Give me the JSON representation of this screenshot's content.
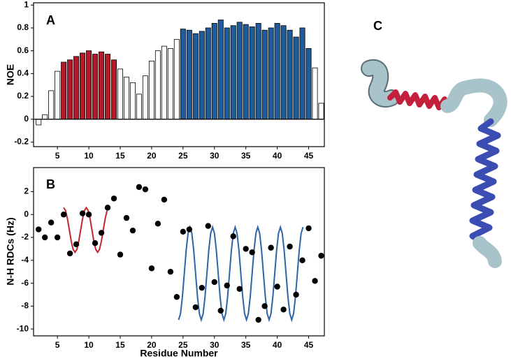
{
  "chart_data": [
    {
      "type": "bar",
      "panel_label": "A",
      "y_label": "NOE",
      "x": [
        2,
        3,
        4,
        5,
        6,
        7,
        8,
        9,
        10,
        11,
        12,
        13,
        14,
        15,
        16,
        17,
        18,
        19,
        20,
        21,
        22,
        23,
        24,
        25,
        26,
        27,
        28,
        29,
        30,
        31,
        32,
        33,
        34,
        35,
        36,
        37,
        38,
        39,
        40,
        41,
        42,
        43,
        44,
        45,
        46,
        47
      ],
      "values": [
        -0.05,
        0.04,
        0.25,
        0.42,
        0.5,
        0.52,
        0.55,
        0.58,
        0.6,
        0.57,
        0.59,
        0.57,
        0.52,
        0.44,
        0.37,
        0.32,
        0.22,
        0.38,
        0.51,
        0.6,
        0.64,
        0.62,
        0.7,
        0.79,
        0.78,
        0.75,
        0.77,
        0.8,
        0.84,
        0.87,
        0.8,
        0.82,
        0.85,
        0.83,
        0.81,
        0.84,
        0.78,
        0.8,
        0.84,
        0.82,
        0.78,
        0.72,
        0.8,
        0.62,
        0.45,
        0.14
      ],
      "colors": [
        "#ffffff",
        "#ffffff",
        "#ffffff",
        "#ffffff",
        "#b31b2c",
        "#b31b2c",
        "#b31b2c",
        "#b31b2c",
        "#b31b2c",
        "#b31b2c",
        "#b31b2c",
        "#b31b2c",
        "#b31b2c",
        "#ffffff",
        "#ffffff",
        "#ffffff",
        "#ffffff",
        "#ffffff",
        "#ffffff",
        "#ffffff",
        "#ffffff",
        "#ffffff",
        "#ffffff",
        "#1f5c99",
        "#1f5c99",
        "#1f5c99",
        "#1f5c99",
        "#1f5c99",
        "#1f5c99",
        "#1f5c99",
        "#1f5c99",
        "#1f5c99",
        "#1f5c99",
        "#1f5c99",
        "#1f5c99",
        "#1f5c99",
        "#1f5c99",
        "#1f5c99",
        "#1f5c99",
        "#1f5c99",
        "#1f5c99",
        "#1f5c99",
        "#1f5c99",
        "#1f5c99",
        "#ffffff",
        "#ffffff"
      ],
      "xlim": [
        1.2,
        47.5
      ],
      "xticks": [
        5,
        10,
        15,
        20,
        25,
        30,
        35,
        40,
        45
      ],
      "ylim": [
        -0.24,
        1.02
      ],
      "yticks": [
        -0.2,
        0,
        0.2,
        0.4,
        0.6,
        0.8,
        1
      ]
    },
    {
      "type": "scatter",
      "panel_label": "B",
      "y_label": "N-H RDCs (Hz)",
      "x_label": "Residue Number",
      "x": [
        2,
        3,
        4,
        5,
        6,
        7,
        8,
        9,
        10,
        11,
        12,
        13,
        14,
        15,
        16,
        17,
        18,
        19,
        20,
        21,
        22,
        23,
        24,
        25,
        26,
        27,
        28,
        29,
        30,
        31,
        32,
        33,
        34,
        35,
        36,
        37,
        38,
        39,
        40,
        41,
        42,
        43,
        44,
        45,
        46,
        47
      ],
      "values": [
        -1.3,
        -2,
        -0.7,
        -2,
        0,
        -3.4,
        -2.6,
        0.1,
        0,
        -2.5,
        -1.6,
        0.6,
        1.4,
        -3.5,
        -0.3,
        -1.4,
        2.4,
        2.2,
        -4.7,
        -0.8,
        1.3,
        -5,
        -7.2,
        -1.5,
        -1.3,
        -8.1,
        -6.4,
        -1,
        -5.9,
        -8.4,
        -6.2,
        -1.9,
        -6.5,
        -3,
        -3.3,
        -9.2,
        -8,
        -2.9,
        -6.3,
        -8.3,
        -2.8,
        -7,
        -4,
        -1.2,
        -5.8,
        -3.6
      ],
      "color": "#000000",
      "fits": [
        {
          "color": "#c0282d",
          "x": [
            6,
            6.3,
            6.6,
            6.9,
            7.2,
            7.5,
            7.8,
            8.1,
            8.4,
            8.7,
            9,
            9.3,
            9.6,
            9.9,
            10.2,
            10.5,
            10.8,
            11.1,
            11.4,
            11.7,
            12,
            12.3,
            12.6,
            12.9
          ],
          "values": [
            0.6,
            0.34,
            -0.38,
            -1.35,
            -2.33,
            -3.04,
            -3.3,
            -3.04,
            -2.33,
            -1.35,
            -0.38,
            0.34,
            0.6,
            0.34,
            -0.38,
            -1.35,
            -2.33,
            -3.04,
            -3.3,
            -3.04,
            -2.33,
            -1.35,
            -0.38,
            0.34
          ]
        },
        {
          "color": "#2e64a8",
          "x": [
            24.3,
            24.6,
            24.9,
            25.2,
            25.5,
            25.8,
            26.1,
            26.4,
            26.7,
            27,
            27.3,
            27.6,
            27.9,
            28.2,
            28.5,
            28.8,
            29.1,
            29.4,
            29.7,
            30,
            30.3,
            30.6,
            30.9,
            31.2,
            31.5,
            31.8,
            32.1,
            32.4,
            32.7,
            33,
            33.3,
            33.6,
            33.9,
            34.2,
            34.5,
            34.8,
            35.1,
            35.4,
            35.7,
            36,
            36.3,
            36.6,
            36.9,
            37.2,
            37.5,
            37.8,
            38.1,
            38.4,
            38.7,
            39,
            39.3,
            39.6,
            39.9,
            40.2,
            40.5,
            40.8,
            41.1,
            41.4,
            41.7,
            42,
            42.3,
            42.6,
            42.9,
            43.2,
            43.5,
            43.8,
            44.1
          ],
          "values": [
            -9.2,
            -8.66,
            -7.18,
            -5.15,
            -3.13,
            -1.64,
            -1.1,
            -1.64,
            -3.13,
            -5.15,
            -7.18,
            -8.66,
            -9.2,
            -8.66,
            -7.18,
            -5.15,
            -3.13,
            -1.64,
            -1.1,
            -1.64,
            -3.13,
            -5.15,
            -7.18,
            -8.66,
            -9.2,
            -8.66,
            -7.18,
            -5.15,
            -3.13,
            -1.64,
            -1.1,
            -1.64,
            -3.13,
            -5.15,
            -7.18,
            -8.66,
            -9.2,
            -8.66,
            -7.18,
            -5.15,
            -3.13,
            -1.64,
            -1.1,
            -1.64,
            -3.13,
            -5.15,
            -7.18,
            -8.66,
            -9.2,
            -8.66,
            -7.18,
            -5.15,
            -3.13,
            -1.64,
            -1.1,
            -1.64,
            -3.13,
            -5.15,
            -7.18,
            -8.66,
            -9.2,
            -8.66,
            -7.18,
            -5.15,
            -3.13,
            -1.64,
            -1.1
          ]
        }
      ],
      "xlim": [
        1.2,
        47.5
      ],
      "xticks": [
        5,
        10,
        15,
        20,
        25,
        30,
        35,
        40,
        45
      ],
      "ylim": [
        -10.6,
        4.1
      ],
      "yticks": [
        -10,
        -8,
        -6,
        -4,
        -2,
        0,
        2
      ]
    }
  ],
  "structure": {
    "label": "C"
  }
}
